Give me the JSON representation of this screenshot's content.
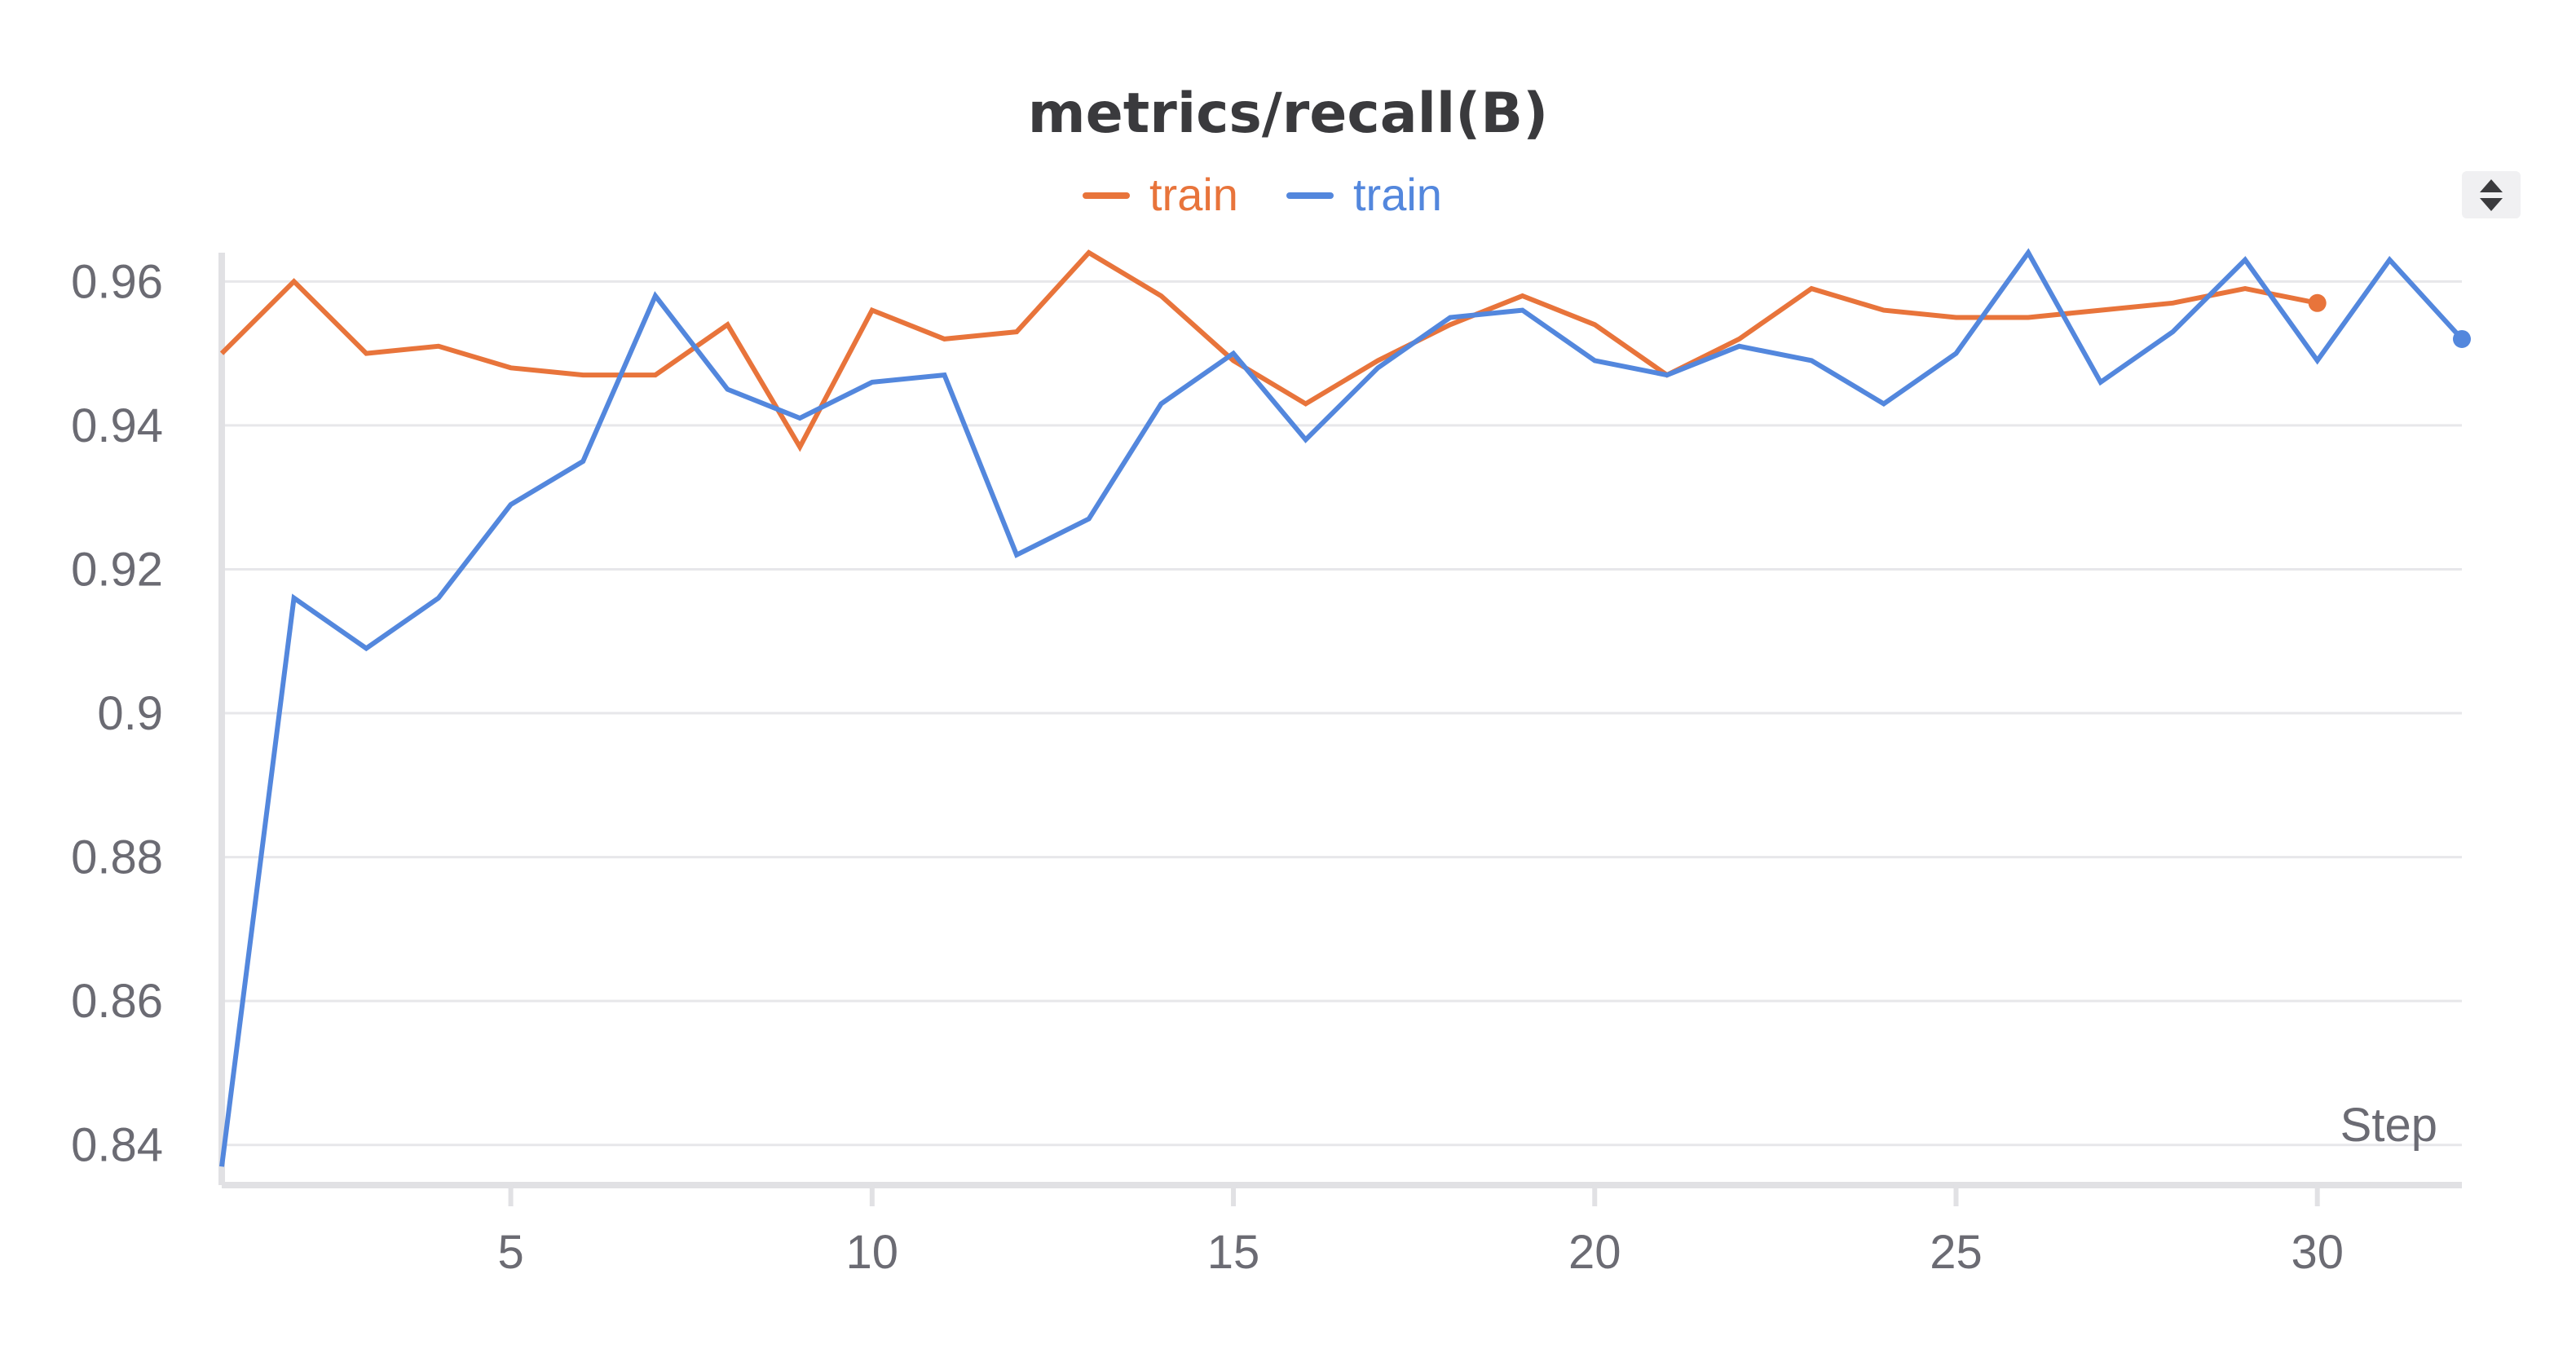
{
  "chart_data": {
    "type": "line",
    "title": "metrics/recall(B)",
    "xlabel": "Step",
    "ylabel": "",
    "xlim": [
      1,
      32
    ],
    "ylim": [
      0.836,
      0.964
    ],
    "x_ticks": [
      5,
      10,
      15,
      20,
      25,
      30
    ],
    "x_tick_labels": [
      "5",
      "10",
      "15",
      "20",
      "25",
      "30"
    ],
    "y_ticks": [
      0.84,
      0.86,
      0.88,
      0.9,
      0.92,
      0.94,
      0.96
    ],
    "y_tick_labels": [
      "0.84",
      "0.86",
      "0.88",
      "0.9",
      "0.92",
      "0.94",
      "0.96"
    ],
    "grid": true,
    "legend_position": "top-center",
    "series": [
      {
        "name": "train",
        "color": "#e8743b",
        "x": [
          1,
          2,
          3,
          4,
          5,
          6,
          7,
          8,
          9,
          10,
          11,
          12,
          13,
          14,
          15,
          16,
          17,
          18,
          19,
          20,
          21,
          22,
          23,
          24,
          25,
          26,
          27,
          28,
          29,
          30
        ],
        "values": [
          0.95,
          0.96,
          0.95,
          0.951,
          0.948,
          0.947,
          0.947,
          0.954,
          0.937,
          0.956,
          0.952,
          0.953,
          0.964,
          0.958,
          0.949,
          0.943,
          0.949,
          0.954,
          0.958,
          0.954,
          0.947,
          0.952,
          0.959,
          0.956,
          0.955,
          0.955,
          0.956,
          0.957,
          0.959,
          0.957
        ]
      },
      {
        "name": "train",
        "color": "#5387dd",
        "x": [
          1,
          2,
          3,
          4,
          5,
          6,
          7,
          8,
          9,
          10,
          11,
          12,
          13,
          14,
          15,
          16,
          17,
          18,
          19,
          20,
          21,
          22,
          23,
          24,
          25,
          26,
          27,
          28,
          29,
          30,
          31,
          32
        ],
        "values": [
          0.837,
          0.916,
          0.909,
          0.916,
          0.929,
          0.935,
          0.958,
          0.945,
          0.941,
          0.946,
          0.947,
          0.922,
          0.927,
          0.943,
          0.95,
          0.938,
          0.948,
          0.955,
          0.956,
          0.949,
          0.947,
          0.951,
          0.949,
          0.943,
          0.95,
          0.964,
          0.946,
          0.953,
          0.963,
          0.949,
          0.963,
          0.952
        ]
      }
    ]
  },
  "controls": {
    "sort_icon": "up-down-arrows-icon"
  }
}
